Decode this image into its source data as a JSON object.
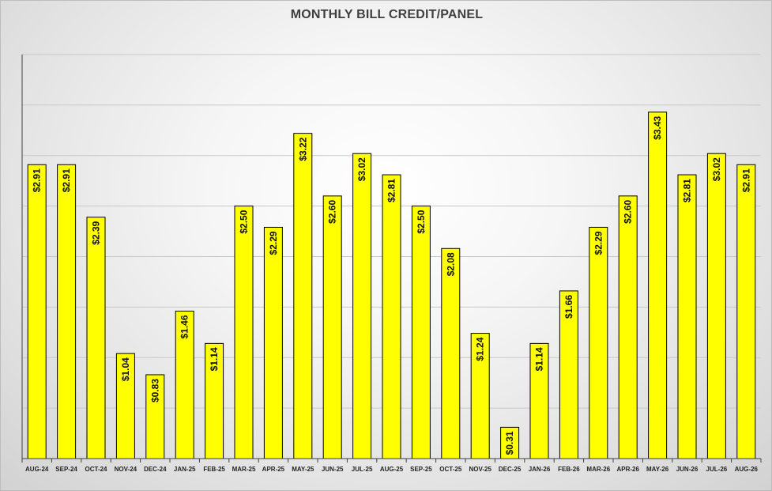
{
  "chart_data": {
    "type": "bar",
    "title": "MONTHLY BILL CREDIT/PANEL",
    "xlabel": "",
    "ylabel": "",
    "categories": [
      "AUG-24",
      "SEP-24",
      "OCT-24",
      "NOV-24",
      "DEC-24",
      "JAN-25",
      "FEB-25",
      "MAR-25",
      "APR-25",
      "MAY-25",
      "JUN-25",
      "JUL-25",
      "AUG-25",
      "SEP-25",
      "OCT-25",
      "NOV-25",
      "DEC-25",
      "JAN-26",
      "FEB-26",
      "MAR-26",
      "APR-26",
      "MAY-26",
      "JUN-26",
      "JUL-26",
      "AUG-26"
    ],
    "values": [
      2.91,
      2.91,
      2.39,
      1.04,
      0.83,
      1.46,
      1.14,
      2.5,
      2.29,
      3.22,
      2.6,
      3.02,
      2.81,
      2.5,
      2.08,
      1.24,
      0.31,
      1.14,
      1.66,
      2.29,
      2.6,
      3.43,
      2.81,
      3.02,
      2.91
    ],
    "data_labels": [
      "$2.91",
      "$2.91",
      "$2.39",
      "$1.04",
      "$0.83",
      "$1.46",
      "$1.14",
      "$2.50",
      "$2.29",
      "$3.22",
      "$2.60",
      "$3.02",
      "$2.81",
      "$2.50",
      "$2.08",
      "$1.24",
      "$0.31",
      "$1.14",
      "$1.66",
      "$2.29",
      "$2.60",
      "$3.43",
      "$2.81",
      "$3.02",
      "$2.91"
    ],
    "ylim": [
      0,
      4.0
    ],
    "y_grid_step": 0.5,
    "y_tick_labels_shown": false,
    "grid": true,
    "legend": "none",
    "colors": {
      "bar_fill": "#ffff00",
      "bar_stroke": "#000000",
      "gridline": "#c8c8c8",
      "axis": "#404040"
    }
  }
}
